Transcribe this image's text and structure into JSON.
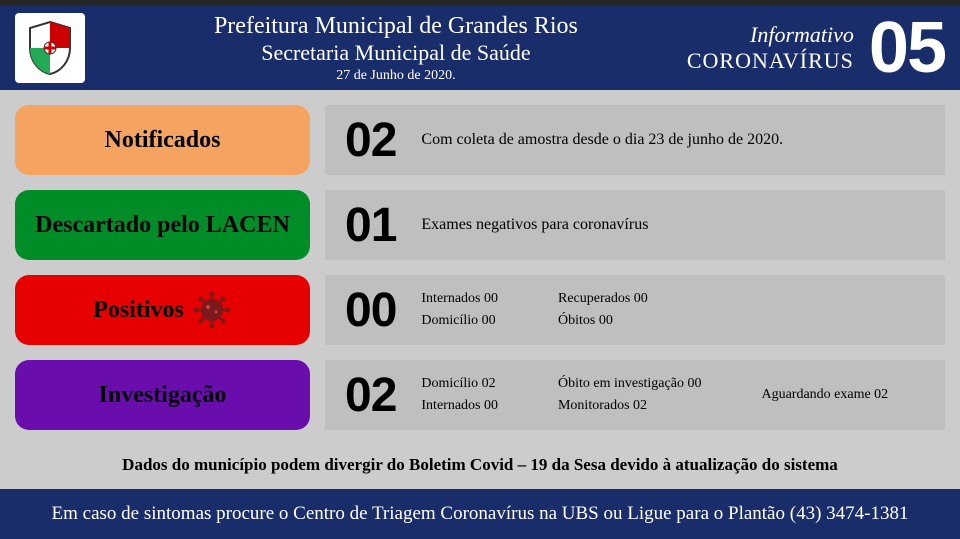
{
  "header": {
    "line1": "Prefeitura Municipal de Grandes Rios",
    "line2": "Secretaria Municipal de Saúde",
    "date": "27 de Junho de 2020.",
    "info_label": "Informativo",
    "info_title": "CORONAVÍRUS",
    "edition": "05"
  },
  "rows": [
    {
      "label": "Notificados",
      "color": "#f4a460",
      "count": "02",
      "desc": "Com coleta de amostra desde o dia 23 de junho de 2020.",
      "type": "single"
    },
    {
      "label": "Descartado pelo LACEN",
      "color": "#008c27",
      "count": "01",
      "desc": "Exames negativos para coronavírus",
      "type": "single"
    },
    {
      "label": "Positivos",
      "color": "#e60000",
      "count": "00",
      "type": "cols2",
      "icon": "virus",
      "cols": [
        [
          "Internados 00",
          "Domicílio 00"
        ],
        [
          "Recuperados 00",
          "Óbitos 00"
        ]
      ]
    },
    {
      "label": "Investigação",
      "color": "#6a0dad",
      "count": "02",
      "type": "cols3",
      "cols": [
        [
          "Domicílio 02",
          "Internados 00"
        ],
        [
          "Óbito em investigação 00",
          "Monitorados 02"
        ],
        [
          "Aguardando exame 02"
        ]
      ]
    }
  ],
  "note": "Dados do município podem divergir do Boletim Covid – 19 da Sesa devido à atualização do sistema",
  "footer": "Em caso de sintomas procure o Centro de Triagem Coronavírus na UBS ou Ligue para o Plantão (43) 3474-1381"
}
